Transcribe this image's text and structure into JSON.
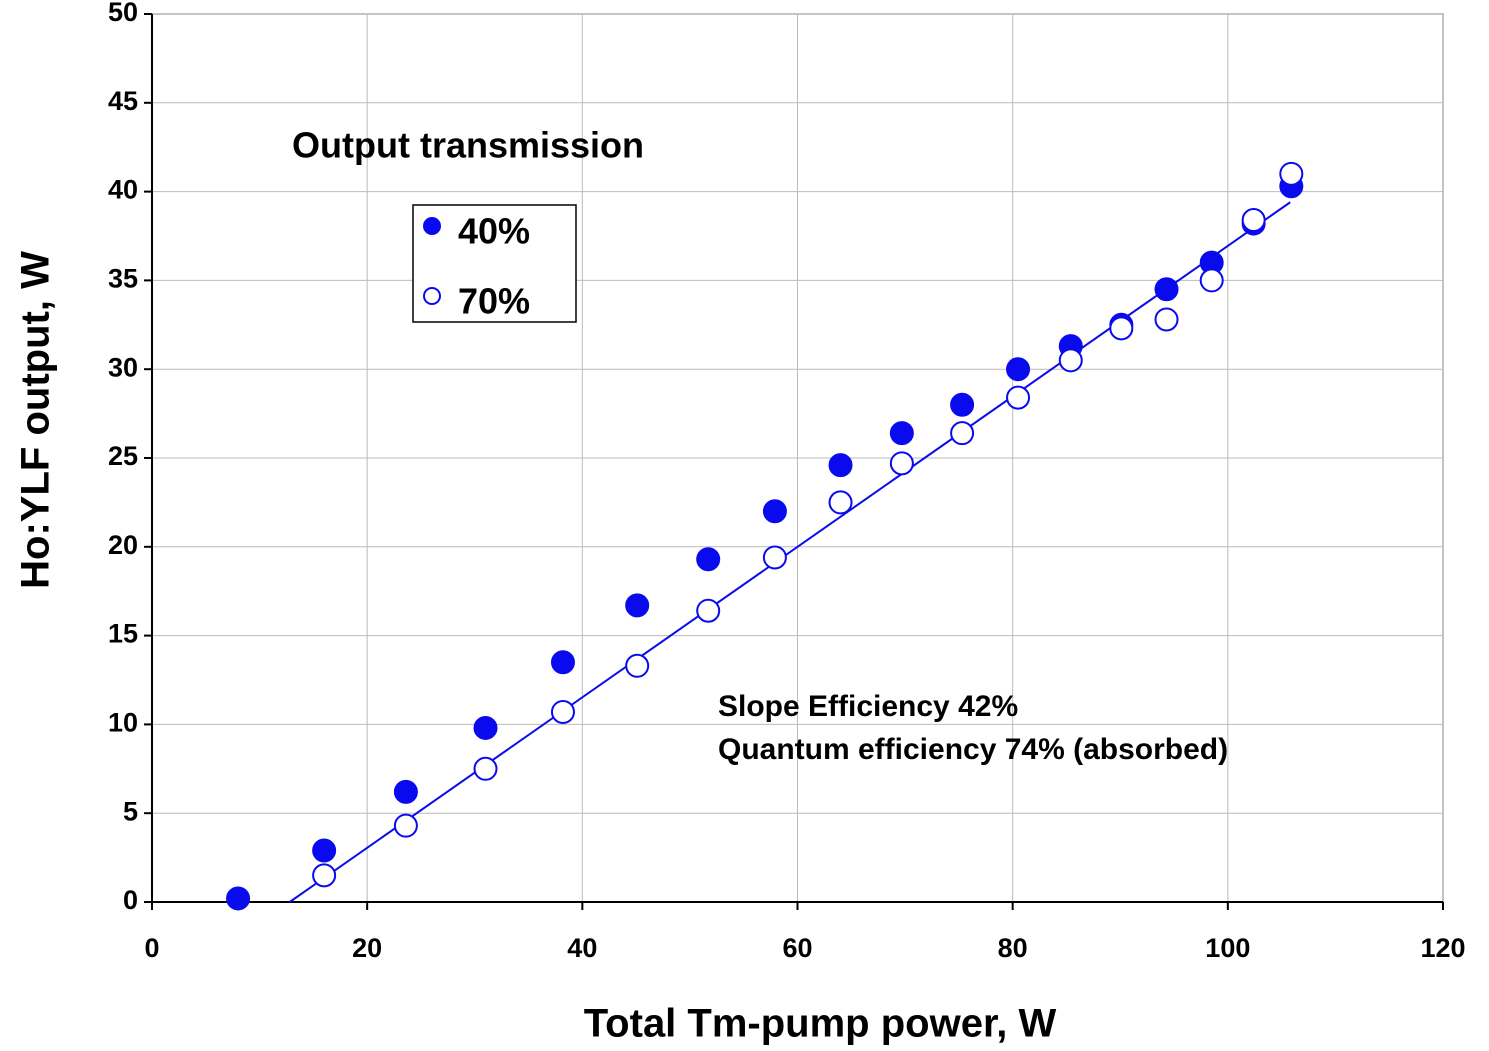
{
  "chart_data": {
    "type": "scatter",
    "xlabel": "Total Tm-pump power, W",
    "ylabel": "Ho:YLF output, W",
    "legend_title": "Output transmission",
    "annotations": [
      "Slope Efficiency 42%",
      "Quantum efficiency 74% (absorbed)"
    ],
    "xlim": [
      0,
      120
    ],
    "xticks": [
      0,
      20,
      40,
      60,
      80,
      100,
      120
    ],
    "ylim": [
      0,
      50
    ],
    "yticks": [
      0,
      5,
      10,
      15,
      20,
      25,
      30,
      35,
      40,
      45,
      50
    ],
    "grid": true,
    "series": [
      {
        "name": "40%",
        "color": "#0a0aee",
        "marker": "filled",
        "x": [
          8.0,
          16.0,
          23.6,
          31.0,
          38.2,
          45.1,
          51.7,
          57.9,
          64.0,
          69.7,
          75.3,
          80.5,
          85.4,
          90.1,
          94.3,
          98.5,
          102.4,
          105.9
        ],
        "values": [
          0.2,
          2.9,
          6.2,
          9.8,
          13.5,
          16.7,
          19.3,
          22.0,
          24.6,
          26.4,
          28.0,
          30.0,
          31.3,
          32.5,
          34.5,
          36.0,
          38.2,
          40.3
        ]
      },
      {
        "name": "70%",
        "color": "#0a0aee",
        "marker": "open",
        "x": [
          16.0,
          23.6,
          31.0,
          38.2,
          45.1,
          51.7,
          57.9,
          64.0,
          69.7,
          75.3,
          80.5,
          85.4,
          90.1,
          94.3,
          98.5,
          102.4,
          105.9
        ],
        "values": [
          1.5,
          4.3,
          7.5,
          10.7,
          13.3,
          16.4,
          19.4,
          22.5,
          24.7,
          26.4,
          28.4,
          30.5,
          32.3,
          32.8,
          35.0,
          38.4,
          41.0
        ]
      }
    ],
    "fit_line": {
      "color": "#0a0aee",
      "x": [
        12.8,
        105.8
      ],
      "values": [
        0,
        39.4
      ]
    }
  }
}
